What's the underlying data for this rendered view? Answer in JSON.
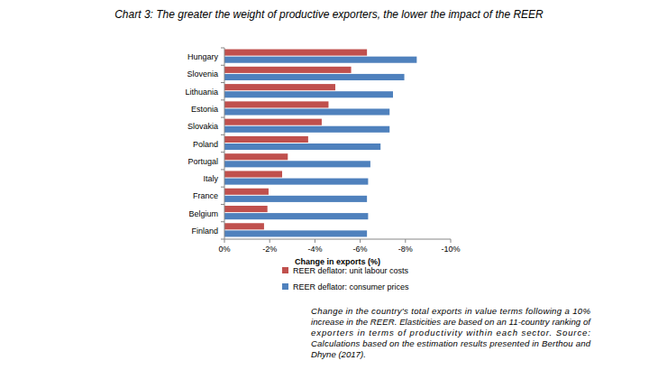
{
  "chart_data": {
    "type": "bar",
    "orientation": "horizontal",
    "title": "Chart 3: The greater the weight of productive exporters, the lower the impact of the REER",
    "x_label": "Change in exports (%)",
    "categories": [
      "Hungary",
      "Slovenia",
      "Lithuania",
      "Estonia",
      "Slovakia",
      "Poland",
      "Portugal",
      "Italy",
      "France",
      "Belgium",
      "Finland"
    ],
    "series": [
      {
        "name": "REER deflator: unit labour costs",
        "color": "#c0504d",
        "values": [
          -6.3,
          -5.6,
          -4.9,
          -4.6,
          -4.3,
          -3.7,
          -2.8,
          -2.55,
          -1.95,
          -1.9,
          -1.75
        ]
      },
      {
        "name": "REER deflator: consumer prices",
        "color": "#4f81bd",
        "values": [
          -8.5,
          -7.95,
          -7.45,
          -7.3,
          -7.3,
          -6.9,
          -6.45,
          -6.35,
          -6.3,
          -6.35,
          -6.3
        ]
      }
    ],
    "xlim": [
      0,
      -10
    ],
    "xticks": [
      {
        "value": 0,
        "label": "0%"
      },
      {
        "value": -2,
        "label": "-2%"
      },
      {
        "value": -4,
        "label": "-4%"
      },
      {
        "value": -6,
        "label": "-6%"
      },
      {
        "value": -8,
        "label": "-8%"
      },
      {
        "value": -10,
        "label": "-10%"
      }
    ],
    "grid": false,
    "legend": "bottom",
    "caption": [
      "Change in the country's total exports in value terms following a 10%",
      "increase in the REER. Elasticities are based on an 11-country ranking of",
      "exporters in terms of productivity within each sector. Source:",
      "Calculations based on the estimation results presented in Berthou and",
      "Dhyne (2017)."
    ]
  }
}
